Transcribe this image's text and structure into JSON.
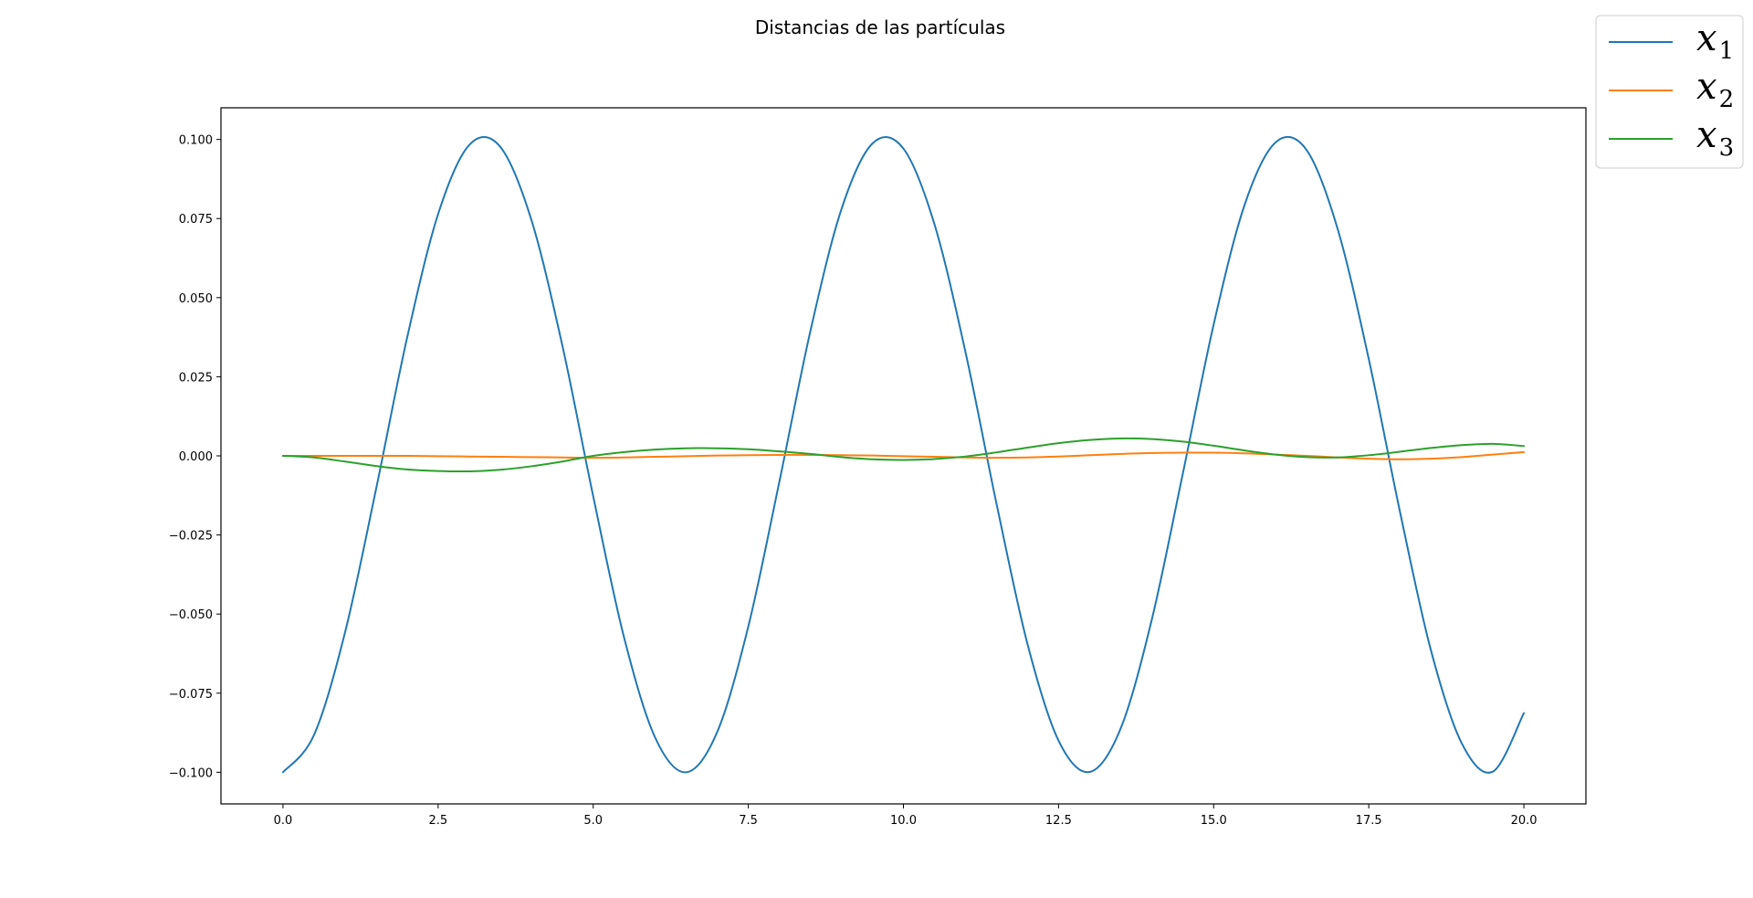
{
  "chart_data": {
    "type": "line",
    "title": "Distancias de las partículas",
    "xlabel": "",
    "ylabel": "",
    "xlim": [
      -1,
      21
    ],
    "ylim": [
      -0.11,
      0.11
    ],
    "x_ticks": [
      0.0,
      2.5,
      5.0,
      7.5,
      10.0,
      12.5,
      15.0,
      17.5,
      20.0
    ],
    "x_tick_labels": [
      "0.0",
      "2.5",
      "5.0",
      "7.5",
      "10.0",
      "12.5",
      "15.0",
      "17.5",
      "20.0"
    ],
    "y_ticks": [
      0.1,
      0.075,
      0.05,
      0.025,
      0.0,
      -0.025,
      -0.05,
      -0.075,
      -0.1
    ],
    "y_tick_labels": [
      "0.100",
      "0.075",
      "0.050",
      "0.025",
      "0.000",
      "−0.025",
      "−0.050",
      "−0.075",
      "−0.100"
    ],
    "grid": false,
    "legend_position": "top-right-outside",
    "x": [
      0,
      0.5,
      1,
      1.5,
      2,
      2.5,
      3,
      3.5,
      4,
      4.5,
      5,
      5.5,
      6,
      6.5,
      7,
      7.5,
      8,
      8.5,
      9,
      9.5,
      10,
      10.5,
      11,
      11.5,
      12,
      12.5,
      13,
      13.5,
      14,
      14.5,
      15,
      15.5,
      16,
      16.5,
      17,
      17.5,
      18,
      18.5,
      19,
      19.5,
      20
    ],
    "series": [
      {
        "name": "x",
        "subscript": "1",
        "color": "#1f77b4",
        "values": [
          -0.1,
          -0.0882,
          -0.0558,
          -0.0105,
          0.0373,
          0.0764,
          0.0982,
          0.0977,
          0.0748,
          0.0351,
          -0.0128,
          -0.0576,
          -0.0891,
          -0.1,
          -0.0872,
          -0.0539,
          -0.0082,
          0.0394,
          0.0779,
          0.0987,
          0.0971,
          0.0732,
          0.0328,
          -0.0151,
          -0.0595,
          -0.09,
          -0.0999,
          -0.0862,
          -0.052,
          -0.0059,
          0.0415,
          0.0794,
          0.0991,
          0.0966,
          0.0716,
          0.0306,
          -0.0174,
          -0.0613,
          -0.0909,
          -0.0998,
          -0.0813
        ]
      },
      {
        "name": "x",
        "subscript": "2",
        "color": "#ff7f0e",
        "values": [
          0,
          0,
          0,
          0,
          0,
          -0.0001,
          -0.0002,
          -0.0003,
          -0.0004,
          -0.0005,
          -0.0006,
          -0.0005,
          -0.0003,
          -0.0001,
          0.0001,
          0.0002,
          0.0003,
          0.0003,
          0.0002,
          0.0001,
          -0.0001,
          -0.0003,
          -0.0005,
          -0.0006,
          -0.0005,
          -0.0002,
          0.0002,
          0.0006,
          0.0009,
          0.001,
          0.001,
          0.0008,
          0.0004,
          0,
          -0.0005,
          -0.0009,
          -0.0011,
          -0.0009,
          -0.0004,
          0.0004,
          0.0012
        ]
      },
      {
        "name": "x",
        "subscript": "3",
        "color": "#2ca02c",
        "values": [
          0,
          -0.0005,
          -0.0018,
          -0.0032,
          -0.0043,
          -0.0048,
          -0.0049,
          -0.0044,
          -0.0033,
          -0.0018,
          0.0,
          0.0012,
          0.002,
          0.0024,
          0.0024,
          0.0021,
          0.0014,
          0.0006,
          -0.0004,
          -0.0011,
          -0.0013,
          -0.001,
          -0.0002,
          0.0011,
          0.0026,
          0.004,
          0.005,
          0.0055,
          0.0053,
          0.0045,
          0.0032,
          0.0017,
          0.0004,
          -0.0004,
          -0.0005,
          0.0002,
          0.0013,
          0.0025,
          0.0034,
          0.0038,
          0.0031
        ]
      }
    ]
  }
}
